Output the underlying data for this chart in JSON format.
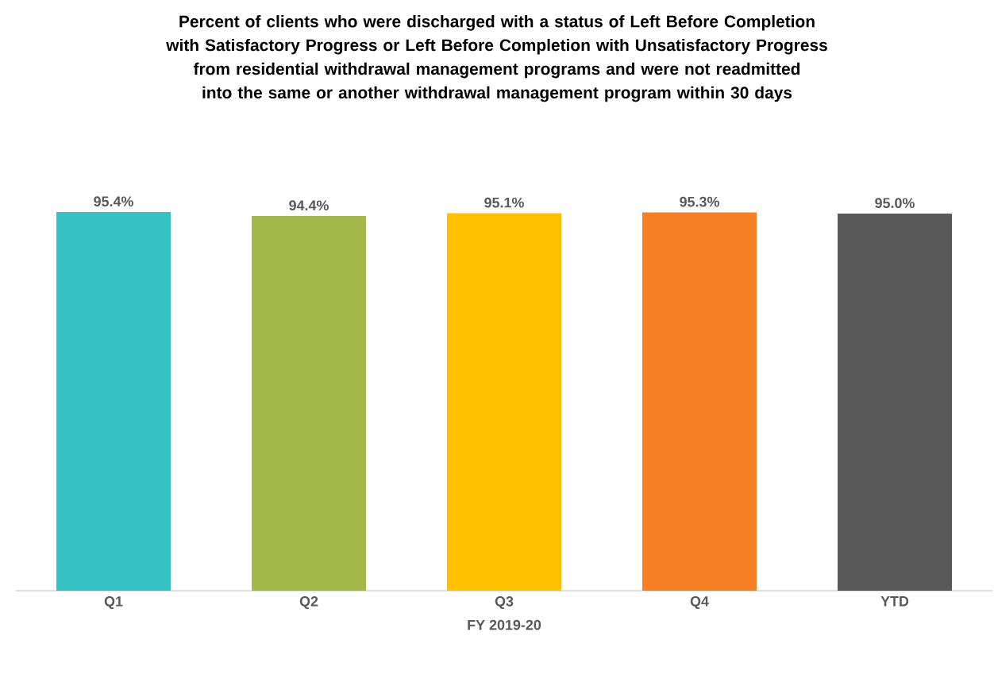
{
  "chart_data": {
    "type": "bar",
    "title": "Percent of clients who were discharged with a status of Left Before Completion with Satisfactory Progress or Left Before Completion with Unsatisfactory Progress from residential withdrawal management programs and were not readmitted into the same or another withdrawal management program within 30 days",
    "xlabel": "FY 2019-20",
    "categories": [
      "Q1",
      "Q2",
      "Q3",
      "Q4",
      "YTD"
    ],
    "values": [
      95.4,
      94.4,
      95.1,
      95.3,
      95.0
    ],
    "value_labels": [
      "95.4%",
      "94.4%",
      "95.1%",
      "95.3%",
      "95.0%"
    ],
    "colors": [
      "#36c1c4",
      "#a5b84a",
      "#ffc000",
      "#f58025",
      "#595959"
    ]
  }
}
